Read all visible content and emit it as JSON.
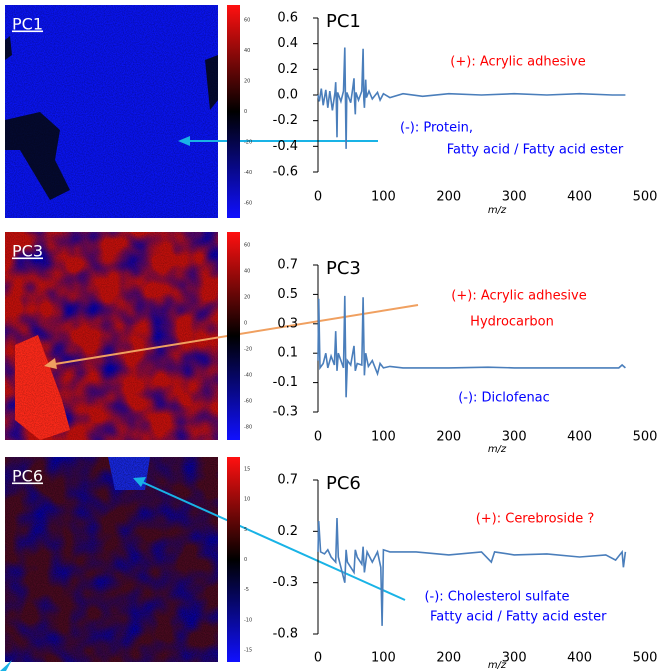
{
  "chart_data": [
    {
      "type": "line",
      "title": "PC1",
      "image_label": "PC1",
      "xlabel": "m/z",
      "color": "#4a7ebb",
      "xlim": [
        0,
        500
      ],
      "xticks": [
        0,
        100,
        200,
        300,
        400,
        500
      ],
      "ylim": [
        -0.6,
        0.6
      ],
      "yticks": [
        -0.6,
        -0.4,
        -0.2,
        {
          "value": 0,
          "label": "0.0"
        },
        0.2,
        0.4,
        0.6
      ],
      "clim": [
        -70,
        70
      ],
      "cticks": [
        60,
        40,
        20,
        0,
        -20,
        -40,
        -60
      ],
      "annotations": [
        {
          "text": "(+): Acrylic adhesive",
          "color": "#ff0000"
        },
        {
          "text": "(-): Protein,",
          "color": "#0000ff"
        },
        {
          "text": "Fatty acid / Fatty acid ester",
          "color": "#0000ff"
        }
      ],
      "x": [
        0,
        2,
        5,
        8,
        12,
        15,
        18,
        22,
        26,
        27,
        28,
        29,
        30,
        35,
        39,
        41,
        42,
        43,
        44,
        50,
        53,
        55,
        56,
        57,
        58,
        62,
        67,
        69,
        70,
        71,
        72,
        73,
        74,
        78,
        83,
        91,
        95,
        100,
        110,
        130,
        160,
        200,
        250,
        300,
        350,
        400,
        450,
        470
      ],
      "values": [
        0,
        -0.05,
        0.05,
        -0.08,
        0.04,
        -0.1,
        0.03,
        -0.12,
        0.02,
        0.1,
        -0.05,
        -0.33,
        0.02,
        -0.05,
        0.03,
        0.37,
        -0.05,
        -0.42,
        0.02,
        -0.06,
        0.05,
        0.13,
        -0.05,
        -0.15,
        0.02,
        -0.04,
        0.03,
        0.36,
        -0.03,
        -0.1,
        0.02,
        0.12,
        -0.02,
        0.03,
        -0.03,
        0.02,
        -0.04,
        0.01,
        -0.02,
        0.01,
        -0.01,
        0.01,
        0,
        0.01,
        0,
        0.01,
        0,
        0
      ]
    },
    {
      "type": "line",
      "title": "PC3",
      "image_label": "PC3",
      "xlabel": "m/z",
      "color": "#4a7ebb",
      "xlim": [
        0,
        500
      ],
      "xticks": [
        0,
        100,
        200,
        300,
        400,
        500
      ],
      "ylim": [
        -0.3,
        0.7
      ],
      "yticks": [
        -0.3,
        -0.1,
        0.1,
        0.3,
        0.5,
        0.7
      ],
      "clim": [
        -90,
        70
      ],
      "cticks": [
        60,
        40,
        20,
        0,
        -20,
        -40,
        -60,
        -80
      ],
      "annotations": [
        {
          "text": "(+): Acrylic adhesive",
          "color": "#ff0000"
        },
        {
          "text": "Hydrocarbon",
          "color": "#ff0000"
        },
        {
          "text": "(-): Diclofenac",
          "color": "#0000ff"
        }
      ],
      "x": [
        0,
        1,
        3,
        8,
        12,
        15,
        20,
        25,
        27,
        29,
        31,
        39,
        41,
        43,
        45,
        50,
        55,
        57,
        60,
        67,
        69,
        71,
        73,
        77,
        83,
        91,
        95,
        100,
        110,
        130,
        200,
        260,
        300,
        400,
        460,
        465,
        470
      ],
      "values": [
        0.05,
        0.47,
        0,
        0.03,
        0.1,
        0,
        0.08,
        0.02,
        0.25,
        -0.02,
        0.1,
        0,
        0.49,
        -0.2,
        0.05,
        0.02,
        0.15,
        -0.02,
        0.03,
        0.02,
        0.48,
        -0.05,
        0.1,
        0.01,
        0.05,
        -0.04,
        0.03,
        0,
        0.01,
        0,
        0,
        0.005,
        0,
        0,
        0,
        0.02,
        0
      ]
    },
    {
      "type": "line",
      "title": "PC6",
      "image_label": "PC6",
      "xlabel": "m/z",
      "color": "#4a7ebb",
      "xlim": [
        0,
        500
      ],
      "xticks": [
        0,
        100,
        200,
        300,
        400,
        500
      ],
      "ylim": [
        -0.8,
        0.7
      ],
      "yticks": [
        -0.8,
        -0.3,
        0.2,
        0.7
      ],
      "clim": [
        -17,
        17
      ],
      "cticks": [
        15,
        10,
        5,
        0,
        -5,
        -10,
        -15
      ],
      "annotations": [
        {
          "text": "(+): Cerebroside ?",
          "color": "#ff0000"
        },
        {
          "text": "(-): Cholesterol sulfate",
          "color": "#0000ff"
        },
        {
          "text": "Fatty acid / Fatty acid ester",
          "color": "#0000ff"
        }
      ],
      "x": [
        0,
        1,
        4,
        10,
        15,
        20,
        27,
        29,
        31,
        35,
        41,
        43,
        45,
        55,
        57,
        60,
        67,
        69,
        71,
        75,
        83,
        91,
        96,
        98,
        100,
        110,
        150,
        200,
        250,
        265,
        270,
        300,
        350,
        400,
        440,
        455,
        465,
        467,
        470
      ],
      "values": [
        0,
        0.3,
        0,
        -0.02,
        0.02,
        -0.05,
        -0.1,
        0.33,
        -0.05,
        -0.15,
        -0.3,
        0.02,
        -0.1,
        -0.2,
        0.02,
        -0.05,
        -0.12,
        0.05,
        -0.2,
        0,
        -0.1,
        0,
        -0.15,
        -0.72,
        0.02,
        0,
        0,
        -0.03,
        0,
        -0.1,
        0,
        -0.03,
        -0.02,
        -0.05,
        -0.03,
        -0.08,
        0,
        -0.15,
        0
      ]
    }
  ]
}
